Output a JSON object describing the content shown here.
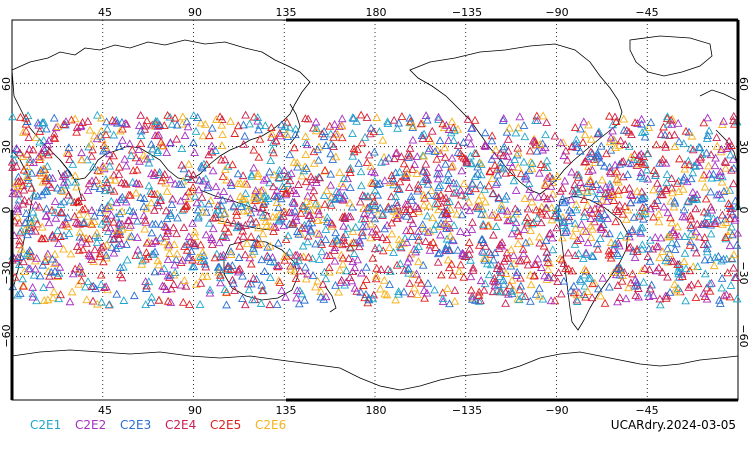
{
  "colors": {
    "C2E1": "#1fa6c9",
    "C2E2": "#a62fc2",
    "C2E3": "#2a6fd1",
    "C2E4": "#c91f52",
    "C2E5": "#e02020",
    "C2E6": "#f5b21c",
    "land_outline": "#000000",
    "grid": "#000000"
  },
  "top_ticks": [
    "45",
    "90",
    "135",
    "180",
    "−135",
    "−90",
    "−45"
  ],
  "bottom_ticks": [
    "45",
    "90",
    "135",
    "180",
    "−135",
    "−90",
    "−45"
  ],
  "left_ticks": [
    "60",
    "30",
    "0",
    "−30",
    "−60"
  ],
  "right_ticks": [
    "60",
    "30",
    "0",
    "−30",
    "−60"
  ],
  "legend": [
    "C2E1",
    "C2E2",
    "C2E3",
    "C2E4",
    "C2E5",
    "C2E6"
  ],
  "caption": "UCARdry.2024-03-05",
  "map": {
    "lon_range": [
      0,
      360
    ],
    "lat_range": [
      -90,
      90
    ],
    "grid_lon": [
      45,
      90,
      135,
      180,
      225,
      270,
      315
    ],
    "grid_lat": [
      60,
      30,
      0,
      -30,
      -60
    ],
    "marker": "triangle-open",
    "observation_lat_band": [
      -45,
      45
    ]
  }
}
